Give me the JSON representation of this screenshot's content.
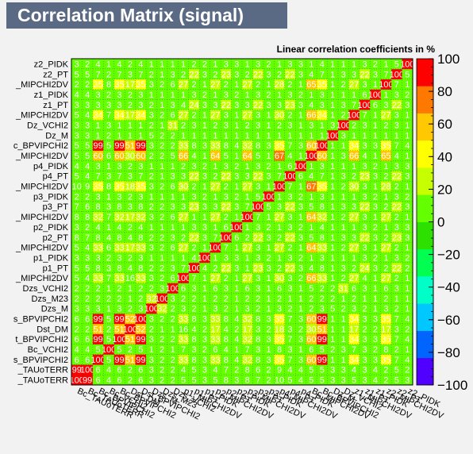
{
  "chart_data": {
    "type": "heatmap",
    "title": "Correlation Matrix (signal)",
    "subtitle": "Linear correlation coefficients in %",
    "variables": [
      "Bc_TAUoTERR",
      "Bc_TAUoTERR",
      "Bc_BPVIPCHI2",
      "Bc_VCHI2",
      "Bc_BPVIPCHI2",
      "Dst_DM",
      "Dst_BPVIPCHI2",
      "Dzs_M",
      "Dzs_M23",
      "Dzs_VCHI2",
      "p1_MIPCHI2DV",
      "p1_PT",
      "p1_PIDK",
      "p2_MIPCHI2DV",
      "p2_PT",
      "p2_PIDK",
      "p3_MIPCHI2DV",
      "p3_PT",
      "p3_PIDK",
      "p4_MIPCHI2DV",
      "p4_PT",
      "p4_PIDK",
      "Bc_MIPCHI2DV",
      "Bc_BPVIPCHI2",
      "Dz_M",
      "Dz_VCHI2",
      "z1_MIPCHI2DV",
      "z1_PT",
      "z1_PIDK",
      "z2_MIPCHI2DV",
      "z2_PT",
      "z2_PIDK"
    ],
    "row_labels": [
      "z2_PIDK",
      "z2_PT",
      "_MIPCHI2DV",
      "z1_PIDK",
      "z1_PT",
      "_MIPCHI2DV",
      "Dz_VCHI2",
      "Dz_M",
      "c_BPVIPCHI2",
      "_MIPCHI2DV",
      "p4_PIDK",
      "p4_PT",
      "_MIPCHI2DV",
      "p3_PIDK",
      "p3_PT",
      "_MIPCHI2DV",
      "p2_PIDK",
      "p2_PT",
      "_MIPCHI2DV",
      "p1_PIDK",
      "p1_PT",
      "_MIPCHI2DV",
      "Dzs_VCHI2",
      "Dzs_M23",
      "Dzs_M",
      "s_BPVIPCHI2",
      "Dst_DM",
      "t_BPVIPCHI2",
      "Bc_VCHI2",
      "s_BPVIPCHI2",
      "_TAUoTERR",
      "_TAUoTERR"
    ],
    "zlim": [
      -100,
      100
    ],
    "z_ticks": [
      "100",
      "80",
      "60",
      "40",
      "20",
      "0",
      "−20",
      "−40",
      "−60",
      "−80",
      "−100"
    ],
    "colorscale": [
      "#5000ff",
      "#0064ff",
      "#00c8ff",
      "#00ffc8",
      "#00ff50",
      "#2ee000",
      "#64ff00",
      "#c8ff00",
      "#ffff00",
      "#ffc800",
      "#ff7800",
      "#ff0000"
    ],
    "matrix": [
      [
        100,
        99,
        6,
        4,
        6,
        2,
        6,
        3,
        2,
        2,
        5,
        5,
        3,
        5,
        8,
        3,
        8,
        7,
        2,
        10,
        5,
        4,
        5,
        5,
        3,
        3,
        5,
        3,
        4,
        2,
        5,
        3
      ],
      [
        99,
        100,
        6,
        4,
        6,
        2,
        6,
        3,
        2,
        2,
        4,
        5,
        3,
        4,
        7,
        2,
        8,
        6,
        2,
        9,
        4,
        4,
        5,
        5,
        3,
        3,
        4,
        3,
        4,
        2,
        5,
        2
      ],
      [
        6,
        6,
        100,
        5,
        99,
        51,
        99,
        3,
        2,
        2,
        33,
        8,
        3,
        33,
        8,
        4,
        32,
        8,
        3,
        35,
        7,
        3,
        60,
        99,
        1,
        1,
        34,
        3,
        3,
        35,
        7,
        4
      ],
      [
        4,
        4,
        5,
        100,
        5,
        2,
        5,
        1,
        2,
        1,
        7,
        3,
        2,
        6,
        4,
        1,
        7,
        3,
        1,
        8,
        3,
        1,
        6,
        5,
        2,
        3,
        7,
        3,
        2,
        8,
        2,
        1
      ],
      [
        6,
        6,
        99,
        5,
        100,
        51,
        99,
        3,
        2,
        2,
        33,
        8,
        3,
        33,
        8,
        4,
        32,
        8,
        3,
        35,
        7,
        3,
        60,
        99,
        1,
        1,
        34,
        3,
        3,
        35,
        7,
        4
      ],
      [
        2,
        2,
        51,
        2,
        51,
        100,
        52,
        2,
        1,
        1,
        16,
        4,
        2,
        17,
        4,
        2,
        17,
        3,
        2,
        18,
        3,
        2,
        30,
        51,
        1,
        1,
        17,
        2,
        2,
        17,
        3,
        2
      ],
      [
        6,
        6,
        99,
        5,
        99,
        52,
        100,
        3,
        2,
        2,
        33,
        8,
        3,
        33,
        8,
        4,
        32,
        8,
        3,
        35,
        7,
        3,
        60,
        99,
        1,
        1,
        34,
        3,
        3,
        35,
        7,
        4
      ],
      [
        3,
        3,
        3,
        1,
        3,
        2,
        3,
        100,
        32,
        2,
        3,
        2,
        1,
        3,
        2,
        1,
        3,
        2,
        1,
        3,
        2,
        1,
        2,
        3,
        5,
        2,
        3,
        2,
        1,
        3,
        2,
        1
      ],
      [
        2,
        2,
        2,
        2,
        2,
        1,
        2,
        32,
        100,
        3,
        2,
        2,
        1,
        2,
        2,
        1,
        2,
        2,
        1,
        2,
        1,
        1,
        2,
        2,
        2,
        1,
        2,
        1,
        1,
        2,
        1,
        1
      ],
      [
        2,
        2,
        2,
        1,
        2,
        1,
        2,
        2,
        3,
        100,
        6,
        3,
        1,
        6,
        3,
        1,
        6,
        3,
        1,
        6,
        3,
        1,
        5,
        2,
        2,
        31,
        6,
        3,
        1,
        6,
        3,
        1
      ],
      [
        5,
        4,
        33,
        7,
        33,
        16,
        33,
        3,
        2,
        6,
        100,
        7,
        1,
        27,
        2,
        1,
        27,
        3,
        1,
        30,
        3,
        2,
        66,
        33,
        1,
        2,
        27,
        4,
        1,
        27,
        2,
        1
      ],
      [
        5,
        5,
        8,
        3,
        8,
        4,
        8,
        2,
        2,
        3,
        7,
        100,
        4,
        2,
        22,
        3,
        1,
        23,
        3,
        2,
        22,
        3,
        4,
        8,
        1,
        3,
        2,
        24,
        3,
        2,
        22,
        2
      ],
      [
        3,
        3,
        3,
        2,
        3,
        2,
        3,
        1,
        1,
        1,
        1,
        4,
        100,
        1,
        3,
        3,
        1,
        3,
        2,
        1,
        3,
        2,
        1,
        3,
        1,
        1,
        1,
        3,
        2,
        1,
        3,
        2
      ],
      [
        5,
        4,
        33,
        6,
        33,
        17,
        33,
        3,
        2,
        6,
        27,
        2,
        1,
        100,
        7,
        1,
        27,
        3,
        1,
        27,
        2,
        1,
        64,
        33,
        1,
        2,
        27,
        3,
        1,
        27,
        2,
        1
      ],
      [
        8,
        7,
        8,
        4,
        8,
        4,
        8,
        2,
        2,
        3,
        2,
        22,
        3,
        7,
        100,
        6,
        2,
        22,
        3,
        2,
        22,
        3,
        5,
        8,
        1,
        3,
        3,
        22,
        3,
        2,
        23,
        3
      ],
      [
        3,
        2,
        4,
        1,
        4,
        2,
        4,
        1,
        1,
        1,
        1,
        3,
        3,
        1,
        6,
        100,
        1,
        3,
        2,
        1,
        3,
        2,
        1,
        4,
        1,
        1,
        1,
        3,
        2,
        1,
        3,
        3
      ],
      [
        8,
        8,
        32,
        7,
        32,
        17,
        32,
        3,
        2,
        6,
        27,
        1,
        1,
        27,
        2,
        1,
        100,
        7,
        1,
        27,
        3,
        1,
        64,
        32,
        1,
        2,
        27,
        3,
        1,
        27,
        2,
        1
      ],
      [
        7,
        6,
        8,
        3,
        8,
        3,
        8,
        2,
        2,
        3,
        3,
        23,
        3,
        3,
        22,
        3,
        7,
        100,
        5,
        3,
        22,
        3,
        5,
        8,
        1,
        3,
        3,
        22,
        3,
        2,
        22,
        3
      ],
      [
        2,
        2,
        3,
        1,
        3,
        2,
        3,
        1,
        1,
        1,
        1,
        3,
        2,
        1,
        3,
        2,
        1,
        5,
        100,
        1,
        3,
        2,
        1,
        3,
        1,
        1,
        1,
        3,
        2,
        1,
        3,
        2
      ],
      [
        10,
        9,
        35,
        8,
        35,
        18,
        35,
        3,
        2,
        6,
        30,
        2,
        1,
        27,
        2,
        1,
        27,
        3,
        1,
        100,
        7,
        1,
        67,
        35,
        1,
        2,
        30,
        3,
        1,
        28,
        2,
        1
      ],
      [
        5,
        4,
        7,
        3,
        7,
        3,
        7,
        2,
        1,
        3,
        3,
        22,
        3,
        2,
        22,
        3,
        3,
        22,
        3,
        7,
        100,
        6,
        4,
        7,
        1,
        3,
        2,
        23,
        3,
        2,
        22,
        3
      ],
      [
        4,
        4,
        3,
        1,
        3,
        2,
        3,
        1,
        1,
        1,
        2,
        3,
        2,
        1,
        3,
        2,
        1,
        3,
        2,
        1,
        6,
        100,
        1,
        3,
        1,
        1,
        1,
        3,
        2,
        1,
        3,
        3
      ],
      [
        5,
        5,
        60,
        6,
        60,
        30,
        60,
        2,
        2,
        5,
        66,
        4,
        1,
        64,
        5,
        1,
        64,
        5,
        1,
        67,
        4,
        1,
        100,
        60,
        1,
        3,
        66,
        4,
        1,
        65,
        4,
        1
      ],
      [
        5,
        5,
        99,
        5,
        99,
        51,
        99,
        3,
        2,
        2,
        33,
        8,
        3,
        33,
        8,
        4,
        32,
        8,
        3,
        35,
        7,
        3,
        60,
        100,
        1,
        1,
        34,
        3,
        3,
        35,
        7,
        4
      ],
      [
        3,
        3,
        1,
        2,
        1,
        1,
        1,
        5,
        2,
        2,
        1,
        1,
        1,
        1,
        1,
        1,
        1,
        1,
        1,
        1,
        1,
        1,
        1,
        1,
        100,
        3,
        1,
        1,
        1,
        1,
        1,
        1
      ],
      [
        3,
        3,
        1,
        3,
        1,
        1,
        1,
        2,
        1,
        31,
        2,
        3,
        1,
        2,
        3,
        1,
        2,
        3,
        1,
        2,
        3,
        1,
        3,
        1,
        3,
        100,
        2,
        3,
        1,
        2,
        3,
        1
      ],
      [
        5,
        4,
        34,
        7,
        34,
        17,
        34,
        3,
        2,
        6,
        27,
        2,
        1,
        27,
        3,
        1,
        27,
        3,
        1,
        30,
        2,
        1,
        66,
        34,
        1,
        2,
        100,
        7,
        1,
        27,
        3,
        1
      ],
      [
        3,
        3,
        3,
        3,
        3,
        2,
        3,
        2,
        1,
        3,
        4,
        24,
        3,
        3,
        22,
        3,
        3,
        22,
        3,
        3,
        23,
        3,
        4,
        3,
        1,
        3,
        7,
        100,
        6,
        3,
        22,
        3
      ],
      [
        4,
        4,
        3,
        2,
        3,
        2,
        3,
        1,
        1,
        1,
        1,
        3,
        2,
        1,
        3,
        2,
        1,
        3,
        2,
        1,
        3,
        2,
        1,
        3,
        1,
        1,
        1,
        6,
        100,
        1,
        3,
        2
      ],
      [
        2,
        2,
        35,
        8,
        35,
        17,
        35,
        3,
        2,
        6,
        27,
        2,
        1,
        27,
        2,
        1,
        27,
        2,
        1,
        28,
        2,
        1,
        65,
        35,
        1,
        2,
        27,
        3,
        1,
        100,
        7,
        1
      ],
      [
        5,
        5,
        7,
        2,
        7,
        3,
        7,
        2,
        1,
        3,
        2,
        22,
        3,
        2,
        23,
        3,
        2,
        22,
        3,
        2,
        22,
        3,
        4,
        7,
        1,
        3,
        3,
        22,
        3,
        7,
        100,
        5
      ],
      [
        3,
        2,
        4,
        1,
        4,
        2,
        4,
        1,
        1,
        1,
        1,
        2,
        2,
        1,
        3,
        3,
        1,
        3,
        2,
        1,
        3,
        3,
        1,
        4,
        1,
        1,
        1,
        3,
        2,
        1,
        5,
        100
      ]
    ]
  }
}
